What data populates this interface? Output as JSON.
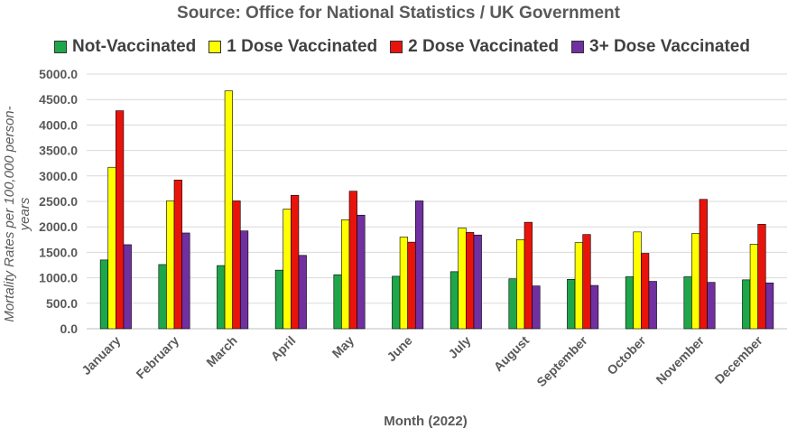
{
  "chart_data": {
    "type": "bar",
    "subtitle": "Source: Office for National Statistics / UK Government",
    "xlabel": "Month (2022)",
    "ylabel": "Mortality Rates per 100,000 person-years",
    "ylim": [
      0,
      5000
    ],
    "yticks": [
      "0.0",
      "500.0",
      "1000.0",
      "1500.0",
      "2000.0",
      "2500.0",
      "3000.0",
      "3500.0",
      "4000.0",
      "4500.0",
      "5000.0"
    ],
    "grid": true,
    "legend_position": "top",
    "categories": [
      "January",
      "February",
      "March",
      "April",
      "May",
      "June",
      "July",
      "August",
      "September",
      "October",
      "November",
      "December"
    ],
    "series": [
      {
        "name": "Not-Vaccinated",
        "color": "#1fa64a",
        "values": [
          1350,
          1260,
          1240,
          1150,
          1060,
          1030,
          1120,
          980,
          970,
          1020,
          1020,
          960
        ]
      },
      {
        "name": "1 Dose Vaccinated",
        "color": "#ffff00",
        "values": [
          3170,
          2510,
          4670,
          2350,
          2140,
          1800,
          1980,
          1750,
          1690,
          1900,
          1870,
          1660
        ]
      },
      {
        "name": "2 Dose Vaccinated",
        "color": "#e8140c",
        "values": [
          4280,
          2920,
          2510,
          2620,
          2700,
          1700,
          1890,
          2090,
          1850,
          1480,
          2540,
          2050
        ]
      },
      {
        "name": "3+ Dose Vaccinated",
        "color": "#7030a0",
        "values": [
          1650,
          1880,
          1920,
          1440,
          2230,
          2510,
          1840,
          840,
          850,
          930,
          910,
          900
        ]
      }
    ]
  }
}
